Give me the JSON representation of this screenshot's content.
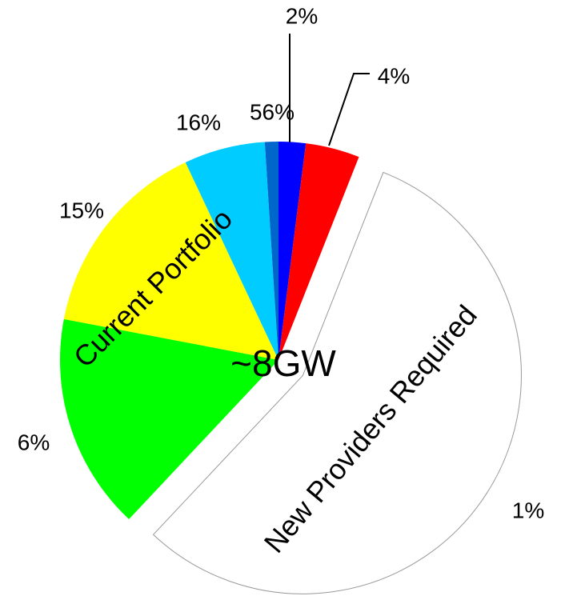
{
  "chart_data": {
    "type": "pie",
    "values": [
      2,
      4,
      56,
      16,
      15,
      6,
      1
    ],
    "value_labels": [
      "2%",
      "4%",
      "56%",
      "16%",
      "15%",
      "6%",
      "1%"
    ],
    "colors": [
      "#0000ff",
      "#ff0000",
      "#ffffff",
      "#00ff00",
      "#ffff00",
      "#00ccff",
      "#0066cc"
    ],
    "exploded": [
      2
    ],
    "annotations": [
      "Current Portfolio",
      "New Providers Required",
      "~8GW"
    ]
  }
}
